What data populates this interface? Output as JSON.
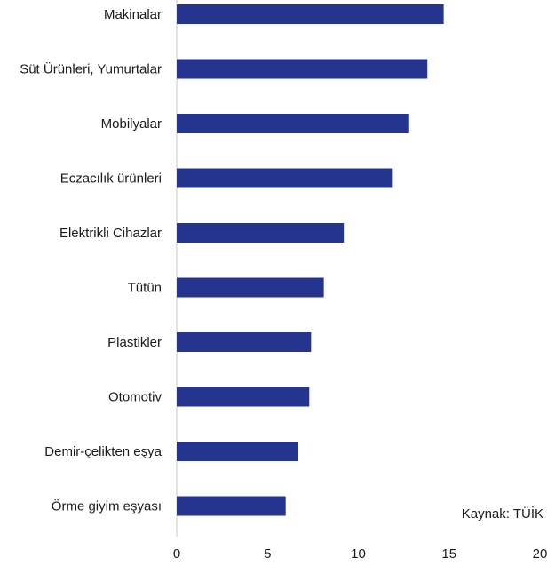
{
  "chart_data": {
    "type": "bar",
    "orientation": "horizontal",
    "categories": [
      "Makinalar",
      "Süt Ürünleri, Yumurtalar",
      "Mobilyalar",
      "Eczacılık ürünleri",
      "Elektrikli Cihazlar",
      "Tütün",
      "Plastikler",
      "Otomotiv",
      "Demir-çelikten eşya",
      "Örme giyim eşyası"
    ],
    "values": [
      14.7,
      13.8,
      12.8,
      11.9,
      9.2,
      8.1,
      7.4,
      7.3,
      6.7,
      6.0
    ],
    "xlim": [
      0,
      20
    ],
    "xticks": [
      "0",
      "5",
      "10",
      "15",
      "20"
    ],
    "title": "",
    "xlabel": "",
    "ylabel": "",
    "grid": false,
    "bar_color": "#24348f",
    "axis_color": "#d0d0d0",
    "source_note": "Kaynak: TÜİK"
  }
}
